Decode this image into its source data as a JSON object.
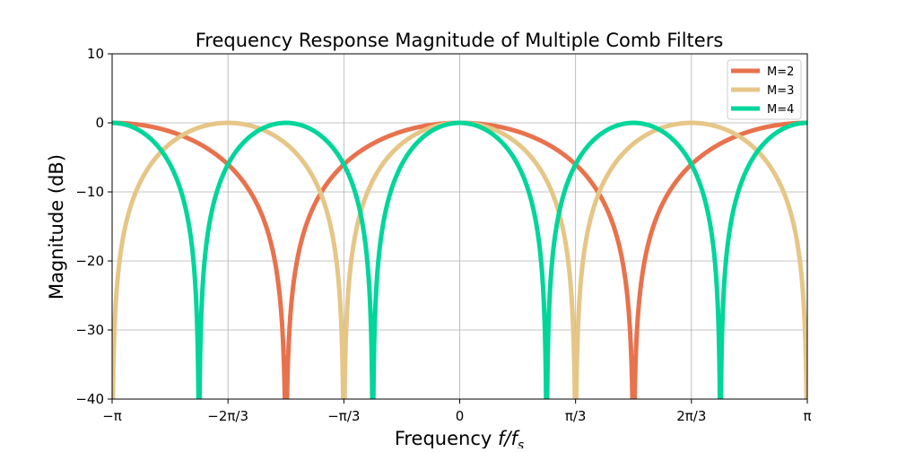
{
  "chart_data": {
    "type": "line",
    "title": "Frequency Response Magnitude of Multiple Comb Filters",
    "xlabel": "Frequency",
    "xlabel_math": "f/f",
    "xlabel_sub": "s",
    "ylabel": "Magnitude (dB)",
    "xlim": [
      -3.14159265,
      3.14159265
    ],
    "ylim": [
      -40,
      10
    ],
    "grid": true,
    "legend_placement": "top-right",
    "x_ticks": [
      {
        "value": -3.14159265,
        "label": "−π"
      },
      {
        "value": -2.0943951,
        "label": "−2π/3"
      },
      {
        "value": -1.0471976,
        "label": "−π/3"
      },
      {
        "value": 0,
        "label": "0"
      },
      {
        "value": 1.0471976,
        "label": "π/3"
      },
      {
        "value": 2.0943951,
        "label": "2π/3"
      },
      {
        "value": 3.14159265,
        "label": "π"
      }
    ],
    "y_ticks": [
      {
        "value": 10,
        "label": "10"
      },
      {
        "value": 0,
        "label": "0"
      },
      {
        "value": -10,
        "label": "−10"
      },
      {
        "value": -20,
        "label": "−20"
      },
      {
        "value": -30,
        "label": "−30"
      },
      {
        "value": -40,
        "label": "−40"
      }
    ],
    "response": "20*log10(|cos(M*w/2)|), floored at -40 dB",
    "series": [
      {
        "name": "M=2",
        "M": 2,
        "color": "#E8724D",
        "peaks": [
          -3.1416,
          0,
          3.1416
        ],
        "nulls": [
          -1.5708,
          1.5708
        ]
      },
      {
        "name": "M=3",
        "M": 3,
        "color": "#E6C687",
        "peaks": [
          -2.0944,
          0,
          2.0944
        ],
        "nulls": [
          -3.1416,
          -1.0472,
          1.0472,
          3.1416
        ]
      },
      {
        "name": "M=4",
        "M": 4,
        "color": "#00D59A",
        "peaks": [
          -3.1416,
          -1.5708,
          0,
          1.5708,
          3.1416
        ],
        "nulls": [
          -2.3562,
          -0.7854,
          0.7854,
          2.3562
        ]
      }
    ]
  }
}
